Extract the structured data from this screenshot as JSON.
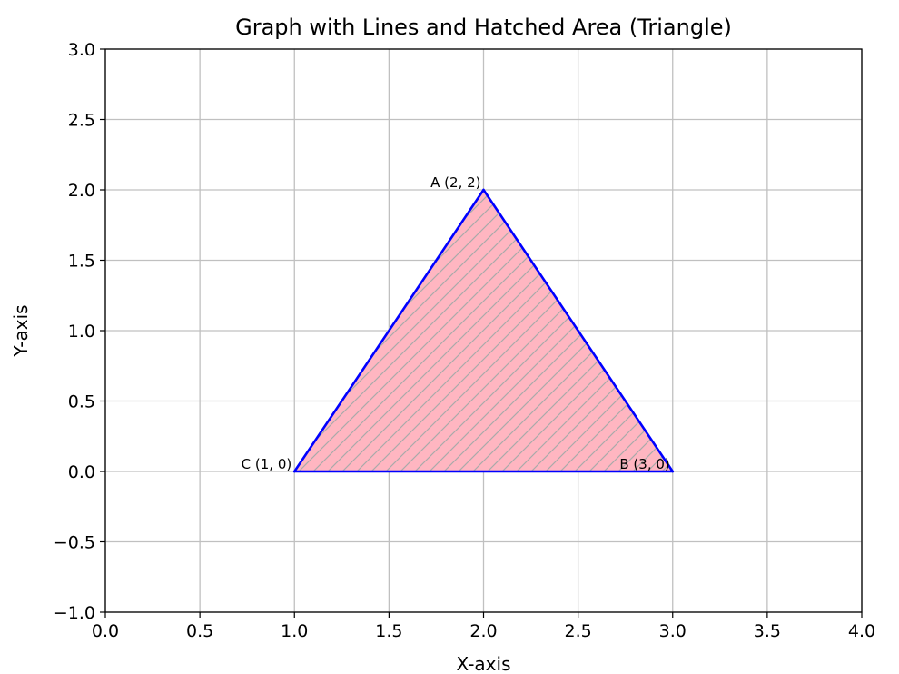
{
  "chart_data": {
    "type": "line",
    "title": "Graph with Lines and Hatched Area (Triangle)",
    "xlabel": "X-axis",
    "ylabel": "Y-axis",
    "xlim": [
      0,
      4
    ],
    "ylim": [
      -1,
      3
    ],
    "x_ticks": [
      0.0,
      0.5,
      1.0,
      1.5,
      2.0,
      2.5,
      3.0,
      3.5,
      4.0
    ],
    "y_ticks": [
      -1.0,
      -0.5,
      0.0,
      0.5,
      1.0,
      1.5,
      2.0,
      2.5,
      3.0
    ],
    "grid": true,
    "series": [
      {
        "points": [
          {
            "x": 1,
            "y": 0
          },
          {
            "x": 2,
            "y": 2
          },
          {
            "x": 3,
            "y": 0
          },
          {
            "x": 1,
            "y": 0
          }
        ],
        "color": "#0000ff"
      }
    ],
    "fill": {
      "vertices": [
        [
          2,
          2
        ],
        [
          3,
          0
        ],
        [
          1,
          0
        ]
      ],
      "facecolor": "#ffb6c1",
      "hatch": "diagonal",
      "hatch_color": "#aaaaaa"
    },
    "annotations": [
      {
        "text": "A (2, 2)",
        "x": 2,
        "y": 2
      },
      {
        "text": "B (3, 0)",
        "x": 3,
        "y": 0
      },
      {
        "text": "C (1, 0)",
        "x": 1,
        "y": 0
      }
    ]
  }
}
